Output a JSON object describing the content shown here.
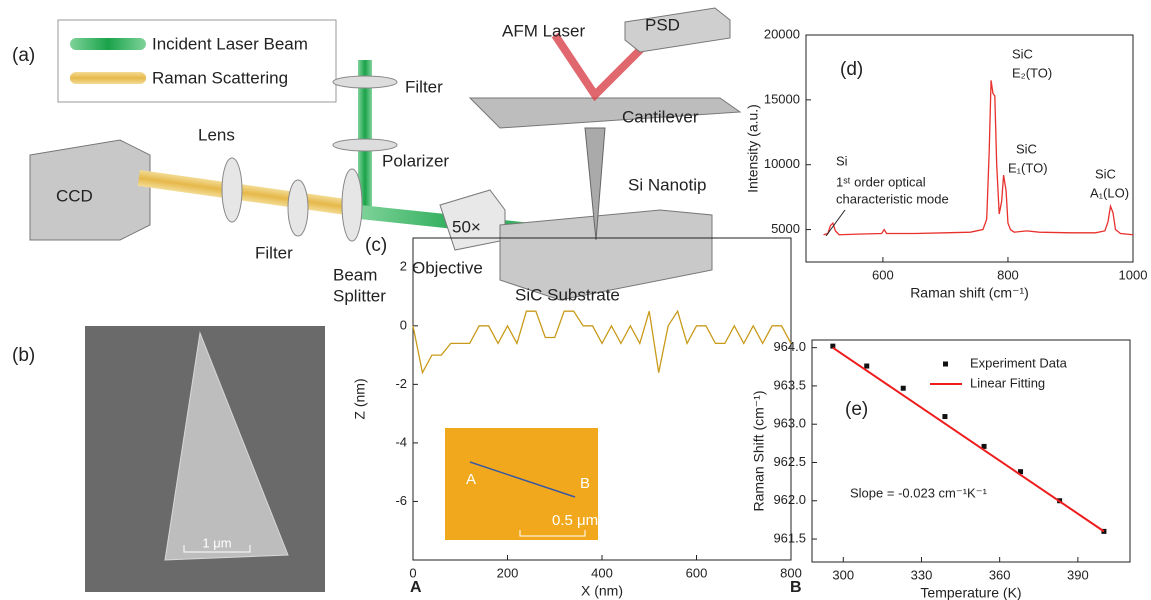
{
  "diagram": {
    "label": "(a)",
    "legend": [
      "Incident Laser Beam",
      "Raman Scattering"
    ],
    "labels": [
      "AFM Laser",
      "PSD",
      "Filter",
      "Cantilever",
      "Lens",
      "Polarizer",
      "CCD",
      "Si Nanotip",
      "50×",
      "Filter",
      "Beam",
      "Splitter",
      "Objective",
      "SiC Substrate"
    ]
  },
  "sem": {
    "label": "(b)",
    "scale": "1 μm"
  },
  "chart_data": [
    {
      "type": "line",
      "label": "(d)",
      "xlabel": "Raman shift (cm⁻¹)",
      "ylabel": "Intensity (a.u.)",
      "xlim": [
        477,
        1000
      ],
      "ylim": [
        2500,
        20000
      ],
      "xticks": [
        600,
        800,
        1000
      ],
      "yticks": [
        5000,
        10000,
        15000,
        20000
      ],
      "series": [
        {
          "color": "#e8302c",
          "x": [
            505,
            512,
            516,
            520,
            524,
            530,
            560,
            598,
            602,
            606,
            650,
            700,
            740,
            760,
            766,
            770,
            773,
            776,
            779,
            782,
            786,
            790,
            793,
            797,
            800,
            804,
            810,
            830,
            850,
            900,
            940,
            955,
            960,
            964,
            968,
            972,
            980,
            1000
          ],
          "values": [
            4600,
            4700,
            5300,
            5500,
            4900,
            4600,
            4650,
            4700,
            5000,
            4700,
            4700,
            4750,
            4800,
            5000,
            5800,
            11000,
            16500,
            15500,
            15300,
            10000,
            6200,
            7200,
            9200,
            8000,
            5500,
            5000,
            4800,
            4900,
            4800,
            4750,
            4750,
            4900,
            5600,
            6800,
            6300,
            5000,
            4700,
            4600
          ]
        }
      ],
      "annotations": [
        "SiC",
        "E₂(TO)",
        "SiC",
        "E₁(TO)",
        "SiC",
        "A₁(LO)",
        "Si",
        "1ˢᵗ order optical",
        "characteristic mode"
      ]
    },
    {
      "type": "line",
      "label": "(c)",
      "xlabel": "X (nm)",
      "ylabel": "Z (nm)",
      "xlim": [
        0,
        800
      ],
      "ylim": [
        -8,
        3
      ],
      "xticks": [
        0,
        200,
        400,
        600,
        800
      ],
      "yticks": [
        -6,
        -4,
        -2,
        0,
        2
      ],
      "series": [
        {
          "color": "#c99a1a",
          "x": [
            0,
            20,
            40,
            60,
            80,
            100,
            120,
            140,
            160,
            180,
            200,
            220,
            240,
            260,
            280,
            300,
            320,
            340,
            360,
            380,
            400,
            420,
            440,
            460,
            480,
            500,
            520,
            540,
            560,
            580,
            600,
            620,
            640,
            660,
            680,
            700,
            720,
            740,
            760,
            780,
            800
          ],
          "values": [
            0,
            -1.6,
            -1.0,
            -1.0,
            -0.6,
            -0.6,
            -0.6,
            0,
            0,
            -0.6,
            0,
            -0.6,
            0.5,
            0.5,
            -0.4,
            -0.4,
            0.5,
            0.5,
            0,
            0,
            -0.6,
            0,
            -0.6,
            0,
            -0.6,
            0.5,
            -1.6,
            0,
            0.5,
            -0.6,
            0,
            0,
            -0.6,
            -0.6,
            0,
            -0.6,
            0,
            -0.6,
            0,
            0,
            -0.6
          ]
        }
      ],
      "annotations": [
        "A",
        "B",
        "A",
        "B",
        "0.5 μm"
      ]
    },
    {
      "type": "scatter",
      "label": "(e)",
      "xlabel": "Temperature (K)",
      "ylabel": "Raman Shift (cm⁻¹)",
      "xlim": [
        288,
        410
      ],
      "ylim": [
        961.2,
        964.1
      ],
      "xticks": [
        300,
        330,
        360,
        390
      ],
      "yticks": [
        961.5,
        {
          "value": 962,
          "label": "962.0"
        },
        962.5,
        {
          "value": 963,
          "label": "963.0"
        },
        963.5,
        {
          "value": 964,
          "label": "964.0"
        }
      ],
      "series": [
        {
          "name": "Experiment Data",
          "color": "#111111",
          "style": "marker",
          "x": [
            296,
            309,
            323,
            339,
            354,
            368,
            383,
            400
          ],
          "values": [
            964.02,
            963.76,
            963.47,
            963.1,
            962.71,
            962.38,
            962.0,
            961.6
          ]
        },
        {
          "name": "Linear Fitting",
          "color": "#ee1c1c",
          "style": "line",
          "x": [
            296,
            400
          ],
          "values": [
            964.0,
            961.6
          ]
        }
      ],
      "annotations": [
        "Slope = -0.023 cm⁻¹K⁻¹"
      ]
    }
  ]
}
